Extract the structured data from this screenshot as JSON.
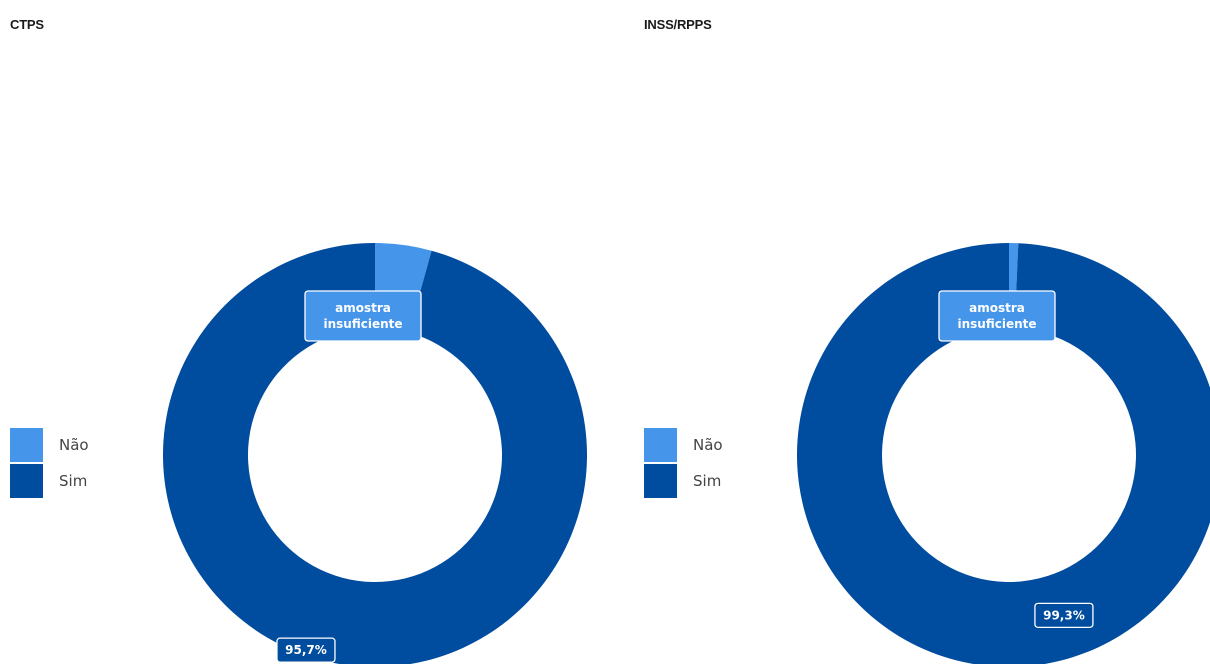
{
  "colors": {
    "nao": "#4595ea",
    "sim": "#004c9e",
    "label_border": "#ffffff"
  },
  "chart_data": [
    {
      "type": "pie",
      "title": "CTPS",
      "categories": [
        "Não",
        "Sim"
      ],
      "values": [
        4.3,
        95.7
      ],
      "data_labels": [
        "amostra insuficiente",
        "95,7%"
      ],
      "legend": "left"
    },
    {
      "type": "pie",
      "title": "INSS/RPPS",
      "categories": [
        "Não",
        "Sim"
      ],
      "values": [
        0.7,
        99.3
      ],
      "data_labels": [
        "amostra insuficiente",
        "99,3%"
      ],
      "legend": "left"
    }
  ]
}
